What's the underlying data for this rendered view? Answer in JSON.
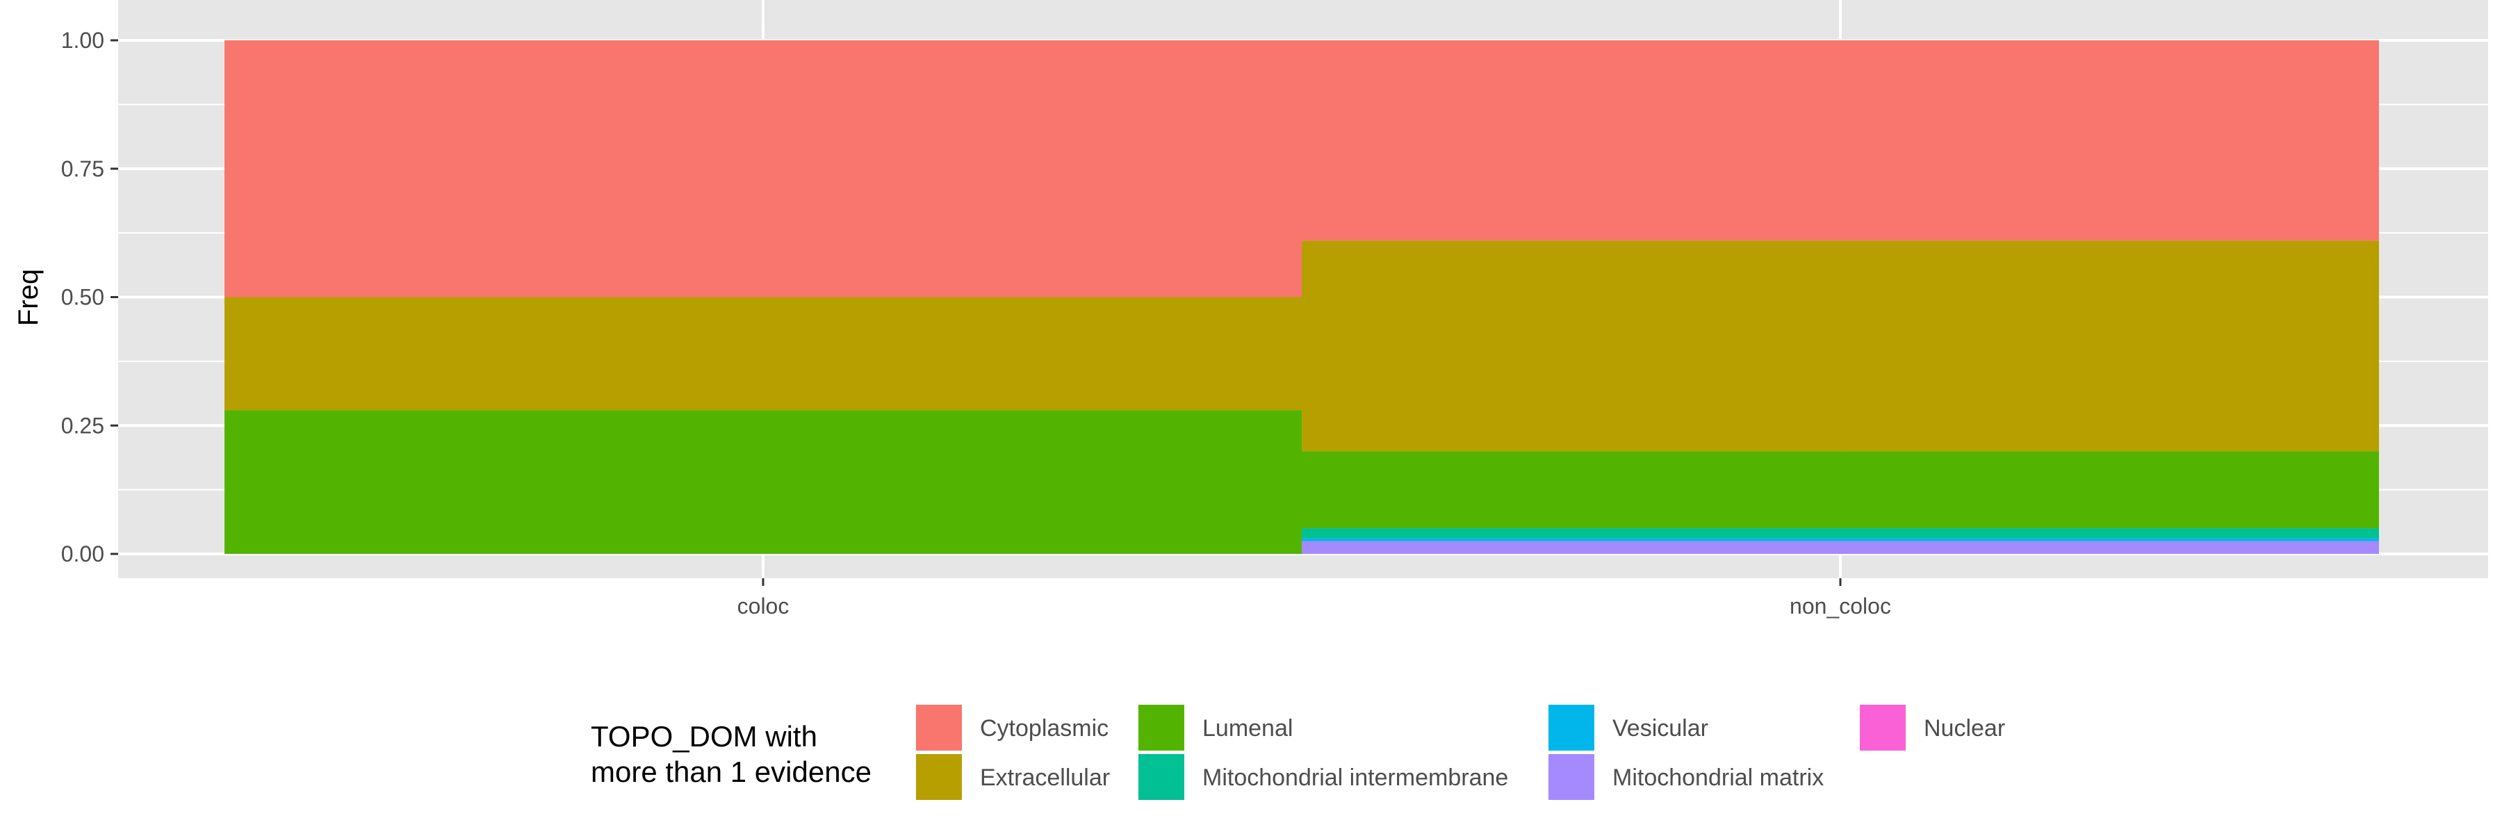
{
  "chart_data": {
    "type": "bar",
    "stacked": true,
    "ylabel": "Freq",
    "xlabel": "",
    "ylim": [
      0,
      1
    ],
    "yticks": [
      0.0,
      0.25,
      0.5,
      0.75,
      1.0
    ],
    "ytick_labels": [
      "0.00",
      "0.25",
      "0.50",
      "0.75",
      "1.00"
    ],
    "categories": [
      "coloc",
      "non_coloc"
    ],
    "series": [
      {
        "name": "Cytoplasmic",
        "color": "#F8766D",
        "values": [
          0.5,
          0.39
        ]
      },
      {
        "name": "Extracellular",
        "color": "#B79F00",
        "values": [
          0.22,
          0.41
        ]
      },
      {
        "name": "Lumenal",
        "color": "#53B400",
        "values": [
          0.28,
          0.15
        ]
      },
      {
        "name": "Mitochondrial intermembrane",
        "color": "#00C094",
        "values": [
          0.0,
          0.02
        ]
      },
      {
        "name": "Vesicular",
        "color": "#00B6EB",
        "values": [
          0.0,
          0.005
        ]
      },
      {
        "name": "Mitochondrial matrix",
        "color": "#A58AFF",
        "values": [
          0.0,
          0.025
        ]
      },
      {
        "name": "Nuclear",
        "color": "#FB61D7",
        "values": [
          0.0,
          0.0
        ]
      }
    ],
    "legend": {
      "title_lines": [
        "TOPO_DOM with",
        "more than 1 evidence"
      ],
      "position": "bottom"
    },
    "grid": true,
    "panel_background": "#E6E6E6"
  }
}
